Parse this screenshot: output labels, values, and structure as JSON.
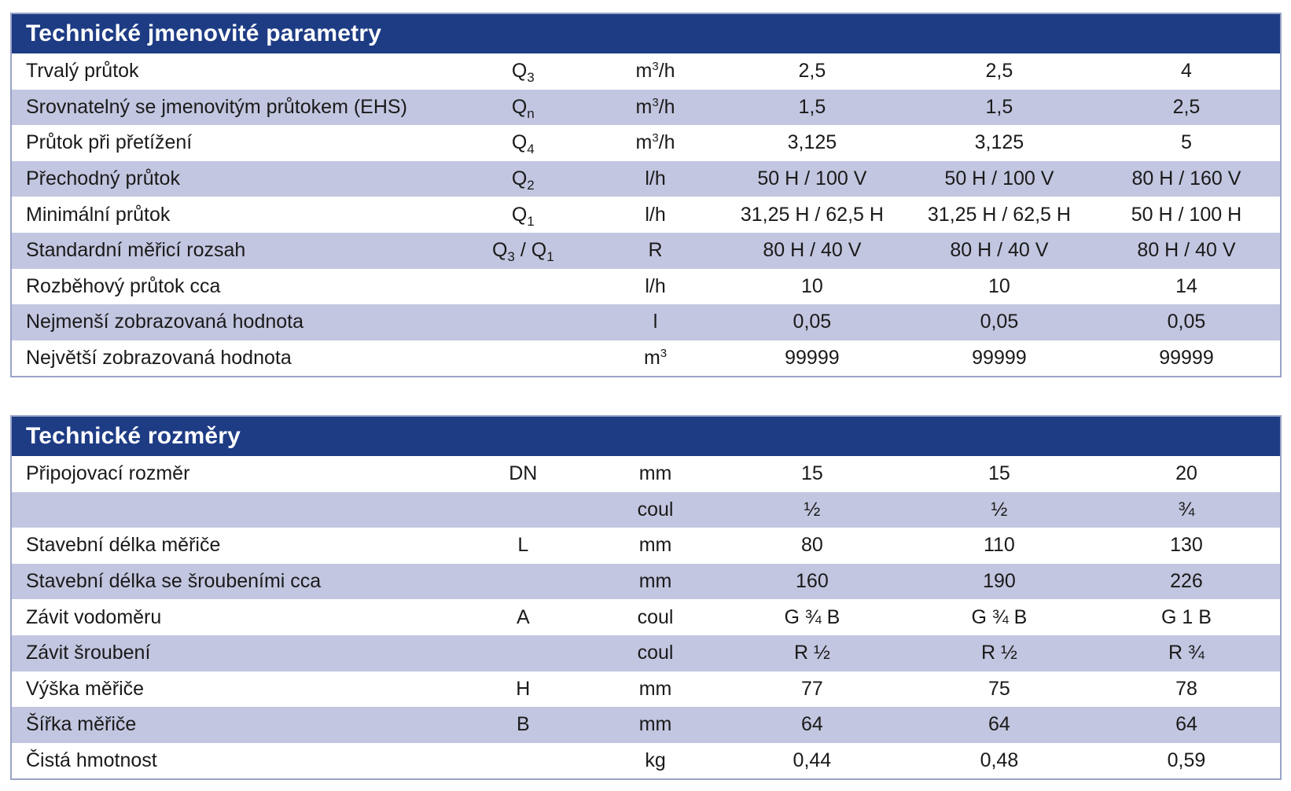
{
  "params": {
    "title": "Technické jmenovité parametry",
    "rows": [
      {
        "label": "Trvalý průtok",
        "sym": "Q",
        "sym_sub": "3",
        "sym_sep": "",
        "sym2": "",
        "sym2_sub": "",
        "unit": "m",
        "unit_sup": "3",
        "unit_tail": "/h",
        "v1": "2,5",
        "v2": "2,5",
        "v3": "4"
      },
      {
        "label": "Srovnatelný se jmenovitým průtokem (EHS)",
        "sym": "Q",
        "sym_sub": "n",
        "sym_sep": "",
        "sym2": "",
        "sym2_sub": "",
        "unit": "m",
        "unit_sup": "3",
        "unit_tail": "/h",
        "v1": "1,5",
        "v2": "1,5",
        "v3": "2,5"
      },
      {
        "label": "Průtok při přetížení",
        "sym": "Q",
        "sym_sub": "4",
        "sym_sep": "",
        "sym2": "",
        "sym2_sub": "",
        "unit": "m",
        "unit_sup": "3",
        "unit_tail": "/h",
        "v1": "3,125",
        "v2": "3,125",
        "v3": "5"
      },
      {
        "label": "Přechodný průtok",
        "sym": "Q",
        "sym_sub": "2",
        "sym_sep": "",
        "sym2": "",
        "sym2_sub": "",
        "unit": "l/h",
        "unit_sup": "",
        "unit_tail": "",
        "v1": "50 H / 100 V",
        "v2": "50 H / 100 V",
        "v3": "80 H / 160 V"
      },
      {
        "label": "Minimální průtok",
        "sym": "Q",
        "sym_sub": "1",
        "sym_sep": "",
        "sym2": "",
        "sym2_sub": "",
        "unit": "l/h",
        "unit_sup": "",
        "unit_tail": "",
        "v1": "31,25 H / 62,5 H",
        "v2": "31,25 H / 62,5 H",
        "v3": "50 H / 100 H"
      },
      {
        "label": "Standardní měřicí rozsah",
        "sym": "Q",
        "sym_sub": "3",
        "sym_sep": " / ",
        "sym2": "Q",
        "sym2_sub": "1",
        "unit": "R",
        "unit_sup": "",
        "unit_tail": "",
        "v1": "80 H / 40 V",
        "v2": "80 H / 40 V",
        "v3": "80 H / 40 V"
      },
      {
        "label": "Rozběhový průtok cca",
        "sym": "",
        "sym_sub": "",
        "sym_sep": "",
        "sym2": "",
        "sym2_sub": "",
        "unit": "l/h",
        "unit_sup": "",
        "unit_tail": "",
        "v1": "10",
        "v2": "10",
        "v3": "14"
      },
      {
        "label": "Nejmenší zobrazovaná hodnota",
        "sym": "",
        "sym_sub": "",
        "sym_sep": "",
        "sym2": "",
        "sym2_sub": "",
        "unit": "l",
        "unit_sup": "",
        "unit_tail": "",
        "v1": "0,05",
        "v2": "0,05",
        "v3": "0,05"
      },
      {
        "label": "Největší zobrazovaná hodnota",
        "sym": "",
        "sym_sub": "",
        "sym_sep": "",
        "sym2": "",
        "sym2_sub": "",
        "unit": "m",
        "unit_sup": "3",
        "unit_tail": "",
        "v1": "99999",
        "v2": "99999",
        "v3": "99999"
      }
    ]
  },
  "dims": {
    "title": "Technické rozměry",
    "rows": [
      {
        "label": "Připojovací rozměr",
        "sym": "DN",
        "unit": "mm",
        "v1": "15",
        "v2": "15",
        "v3": "20"
      },
      {
        "label": "",
        "sym": "",
        "unit": "coul",
        "v1": "½",
        "v2": "½",
        "v3": "¾"
      },
      {
        "label": "Stavební délka měřiče",
        "sym": "L",
        "unit": "mm",
        "v1": "80",
        "v2": "110",
        "v3": "130"
      },
      {
        "label": "Stavební délka se šroubeními cca",
        "sym": "",
        "unit": "mm",
        "v1": "160",
        "v2": "190",
        "v3": "226"
      },
      {
        "label": "Závit vodoměru",
        "sym": "A",
        "unit": "coul",
        "v1": "G ¾ B",
        "v2": "G ¾ B",
        "v3": "G 1 B"
      },
      {
        "label": "Závit šroubení",
        "sym": "",
        "unit": "coul",
        "v1": "R ½",
        "v2": "R ½",
        "v3": "R ¾"
      },
      {
        "label": "Výška měřiče",
        "sym": "H",
        "unit": "mm",
        "v1": "77",
        "v2": "75",
        "v3": "78"
      },
      {
        "label": "Šířka měřiče",
        "sym": "B",
        "unit": "mm",
        "v1": "64",
        "v2": "64",
        "v3": "64"
      },
      {
        "label": "Čistá hmotnost",
        "sym": "",
        "unit": "kg",
        "v1": "0,44",
        "v2": "0,48",
        "v3": "0,59"
      }
    ]
  },
  "colors": {
    "header_bg": "#1e3c84",
    "header_text": "#ffffff",
    "shaded_row": "#c3c6e0",
    "border": "#9aa3c9"
  }
}
